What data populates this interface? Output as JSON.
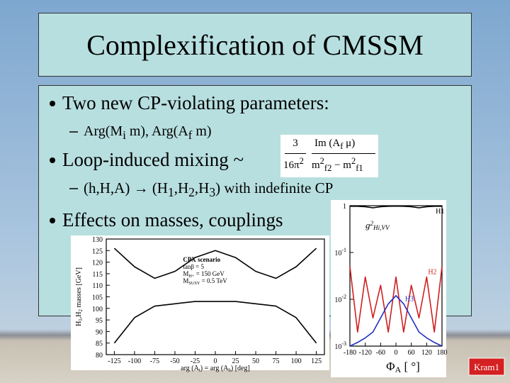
{
  "title": "Complexification of CMSSM",
  "bullet1": "Two new CP-violating parameters:",
  "sub1": [
    "Arg(M",
    {
      "sub": "i"
    },
    " m), Arg(A",
    {
      "sub": "f"
    },
    " m)"
  ],
  "bullet2": "Loop-induced mixing ~",
  "formula": {
    "coef_num": "3",
    "coef_den": [
      "16π",
      {
        "sup": "2"
      }
    ],
    "num": [
      "Im (A",
      {
        "sub": "f"
      },
      " μ)"
    ],
    "den": [
      "m",
      {
        "sup": "2"
      },
      {
        "sub": "f2"
      },
      " − m",
      {
        "sup": "2"
      },
      {
        "sub": "f1"
      }
    ]
  },
  "sub2": [
    "(h,H,A) → (H",
    {
      "sub": "1"
    },
    ",H",
    {
      "sub": "2"
    },
    ",H",
    {
      "sub": "3"
    },
    ") with indefinite CP"
  ],
  "bullet3": "Effects on masses, couplings",
  "footer": "Kram1",
  "chart_data": [
    {
      "type": "line",
      "ylabel": [
        "H",
        {
          "sub": "1"
        },
        ",H",
        {
          "sub": "2"
        },
        " masses [GeV]"
      ],
      "xlabel": [
        "arg (A",
        {
          "sub": "t"
        },
        ") = arg (A",
        {
          "sub": "b"
        },
        ") [deg]"
      ],
      "annotations": [
        [
          "CPX scenario"
        ],
        [
          "tanβ = 5"
        ],
        [
          "M",
          {
            "sub": "H+"
          },
          " = 150 GeV"
        ],
        [
          "M",
          {
            "sub": "SUSY"
          },
          " = 0.5 TeV"
        ]
      ],
      "x": [
        -125,
        -100,
        -75,
        -50,
        -25,
        0,
        25,
        50,
        75,
        100,
        125
      ],
      "series": [
        {
          "color": "#000000",
          "values": [
            126,
            118,
            113,
            116,
            122,
            125,
            122,
            116,
            113,
            118,
            126
          ]
        },
        {
          "color": "#000000",
          "values": [
            85,
            96,
            101,
            102,
            103,
            103,
            103,
            102,
            101,
            96,
            85
          ]
        }
      ],
      "xlim": [
        -135,
        135
      ],
      "ylim": [
        80,
        130
      ],
      "xticks": [
        -125,
        -100,
        -75,
        -50,
        -25,
        0,
        25,
        50,
        75,
        100,
        125
      ],
      "yticks": [
        80,
        85,
        90,
        95,
        100,
        105,
        110,
        115,
        120,
        125,
        130
      ]
    },
    {
      "type": "line",
      "log_y": true,
      "ylabel": [
        "g",
        {
          "sup": "2"
        },
        {
          "sub": "H"
        },
        {
          "sub": "i"
        },
        {
          "sub": ",VV"
        }
      ],
      "xlabel": [
        "Φ",
        {
          "sub": "A"
        },
        " [ °]"
      ],
      "x": [
        -180,
        -150,
        -120,
        -90,
        -60,
        -30,
        0,
        30,
        60,
        90,
        120,
        150,
        180
      ],
      "series": [
        {
          "name": "H1",
          "color": "#000000",
          "values": [
            0.97,
            0.97,
            0.95,
            0.9,
            0.95,
            0.97,
            0.98,
            0.97,
            0.95,
            0.9,
            0.95,
            0.97,
            0.97
          ]
        },
        {
          "name": "H2",
          "color": "#d02020",
          "values": [
            0.05,
            0.002,
            0.03,
            0.004,
            0.02,
            0.002,
            0.03,
            0.002,
            0.02,
            0.004,
            0.03,
            0.002,
            0.05
          ]
        },
        {
          "name": "H3",
          "color": "#2030c0",
          "values": [
            0.001,
            0.0012,
            0.0015,
            0.002,
            0.004,
            0.008,
            0.012,
            0.008,
            0.004,
            0.002,
            0.0015,
            0.0012,
            0.001
          ]
        }
      ],
      "xlim": [
        -180,
        180
      ],
      "ylim": [
        0.001,
        1
      ],
      "xticks": [
        -180,
        -120,
        -60,
        0,
        60,
        120,
        180
      ],
      "yticks": [
        1,
        {
          "value": 0.1,
          "label": "10",
          "sup": "-1"
        },
        {
          "value": 0.01,
          "label": "10",
          "sup": "-2"
        },
        {
          "value": 0.001,
          "label": "10",
          "sup": "-3"
        }
      ]
    }
  ]
}
